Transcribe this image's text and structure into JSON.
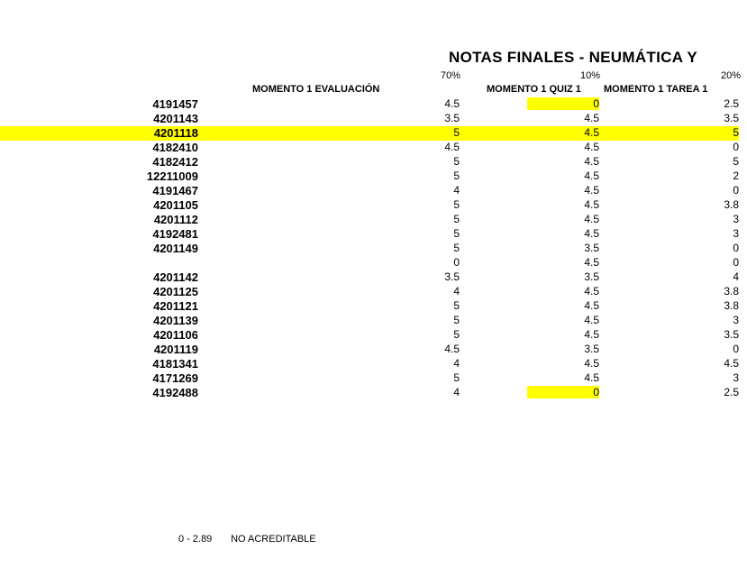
{
  "title": "NOTAS FINALES - NEUMÁTICA Y",
  "percents": {
    "p70": "70%",
    "p10": "10%",
    "p20": "20%"
  },
  "headers": {
    "eval": "MOMENTO 1 EVALUACIÓN",
    "quiz": "MOMENTO 1 QUIZ 1",
    "tarea": "MOMENTO 1 TAREA 1"
  },
  "rows": [
    {
      "id": "4191457",
      "eval": "4.5",
      "quiz": "0",
      "tarea": "2.5",
      "hlRow": false,
      "hlQuiz": true
    },
    {
      "id": "4201143",
      "eval": "3.5",
      "quiz": "4.5",
      "tarea": "3.5",
      "hlRow": false,
      "hlQuiz": false
    },
    {
      "id": "4201118",
      "eval": "5",
      "quiz": "4.5",
      "tarea": "5",
      "hlRow": true,
      "hlQuiz": false
    },
    {
      "id": "4182410",
      "eval": "4.5",
      "quiz": "4.5",
      "tarea": "0",
      "hlRow": false,
      "hlQuiz": false
    },
    {
      "id": "4182412",
      "eval": "5",
      "quiz": "4.5",
      "tarea": "5",
      "hlRow": false,
      "hlQuiz": false
    },
    {
      "id": "12211009",
      "eval": "5",
      "quiz": "4.5",
      "tarea": "2",
      "hlRow": false,
      "hlQuiz": false
    },
    {
      "id": "4191467",
      "eval": "4",
      "quiz": "4.5",
      "tarea": "0",
      "hlRow": false,
      "hlQuiz": false
    },
    {
      "id": "4201105",
      "eval": "5",
      "quiz": "4.5",
      "tarea": "3.8",
      "hlRow": false,
      "hlQuiz": false
    },
    {
      "id": "4201112",
      "eval": "5",
      "quiz": "4.5",
      "tarea": "3",
      "hlRow": false,
      "hlQuiz": false
    },
    {
      "id": "4192481",
      "eval": "5",
      "quiz": "4.5",
      "tarea": "3",
      "hlRow": false,
      "hlQuiz": false
    },
    {
      "id": "4201149",
      "eval": "5",
      "quiz": "3.5",
      "tarea": "0",
      "hlRow": false,
      "hlQuiz": false
    },
    {
      "id": "",
      "eval": "0",
      "quiz": "4.5",
      "tarea": "0",
      "hlRow": false,
      "hlQuiz": false
    },
    {
      "id": "4201142",
      "eval": "3.5",
      "quiz": "3.5",
      "tarea": "4",
      "hlRow": false,
      "hlQuiz": false
    },
    {
      "id": "4201125",
      "eval": "4",
      "quiz": "4.5",
      "tarea": "3.8",
      "hlRow": false,
      "hlQuiz": false
    },
    {
      "id": "4201121",
      "eval": "5",
      "quiz": "4.5",
      "tarea": "3.8",
      "hlRow": false,
      "hlQuiz": false
    },
    {
      "id": "4201139",
      "eval": "5",
      "quiz": "4.5",
      "tarea": "3",
      "hlRow": false,
      "hlQuiz": false
    },
    {
      "id": "4201106",
      "eval": "5",
      "quiz": "4.5",
      "tarea": "3.5",
      "hlRow": false,
      "hlQuiz": false
    },
    {
      "id": "4201119",
      "eval": "4.5",
      "quiz": "3.5",
      "tarea": "0",
      "hlRow": false,
      "hlQuiz": false
    },
    {
      "id": "4181341",
      "eval": "4",
      "quiz": "4.5",
      "tarea": "4.5",
      "hlRow": false,
      "hlQuiz": false
    },
    {
      "id": "4171269",
      "eval": "5",
      "quiz": "4.5",
      "tarea": "3",
      "hlRow": false,
      "hlQuiz": false
    },
    {
      "id": "4192488",
      "eval": "4",
      "quiz": "0",
      "tarea": "2.5",
      "hlRow": false,
      "hlQuiz": true
    }
  ],
  "legend": {
    "range": "0 - 2.89",
    "label": "NO ACREDITABLE"
  },
  "colors": {
    "highlight": "#ffff00",
    "bg": "#ffffff",
    "text": "#000000"
  }
}
